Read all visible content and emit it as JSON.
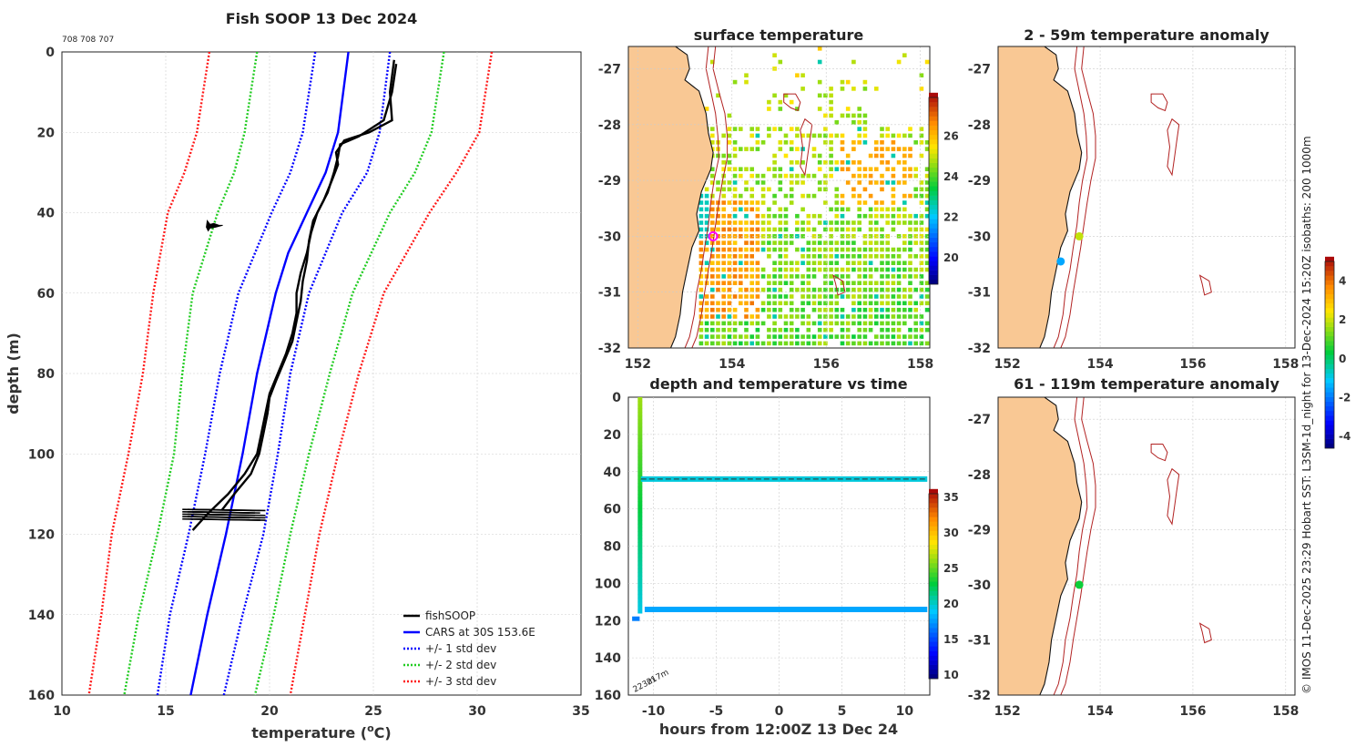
{
  "colors": {
    "land": "#f9c894",
    "isobath": "#b22222",
    "cars": "#0000ff",
    "std1": "#0000ff",
    "std2": "#22cc22",
    "std3": "#ff1a1a",
    "fish": "#000000"
  },
  "top_code": "708 708 707",
  "vertical_caption": "© IMOS 11-Dec-2025 23:29 Hobart SST: L3SM-1d_night for 13-Dec-2024 15:20Z isobaths: 200  1000m",
  "chart_data": [
    {
      "id": "profile",
      "type": "line",
      "title": "Fish SOOP 13 Dec 2024",
      "xlabel": "temperature (",
      "xlabel_sup": "o",
      "xlabel_end": "C)",
      "ylabel": "depth (m)",
      "xlim": [
        10,
        35
      ],
      "ylim": [
        0,
        160
      ],
      "xticks": [
        10,
        15,
        20,
        25,
        30,
        35
      ],
      "yticks": [
        0,
        20,
        40,
        60,
        80,
        100,
        120,
        140,
        160
      ],
      "legend": [
        {
          "label": "fishSOOP",
          "style": "solid",
          "color": "#000000"
        },
        {
          "label": "CARS at 30S 153.6E",
          "style": "solid",
          "color": "#0000ff"
        },
        {
          "label": "+/- 1 std dev",
          "style": "dotted",
          "color": "#0000ff"
        },
        {
          "label": "+/- 2 std dev",
          "style": "dotted",
          "color": "#22cc22"
        },
        {
          "label": "+/- 3 std dev",
          "style": "dotted",
          "color": "#ff1a1a"
        }
      ],
      "cars_mean": {
        "depth": [
          0,
          20,
          30,
          40,
          50,
          60,
          80,
          100,
          120,
          140,
          160
        ],
        "temp": [
          23.8,
          23.3,
          22.7,
          21.8,
          20.9,
          20.3,
          19.4,
          18.7,
          17.9,
          17.0,
          16.2
        ]
      },
      "std_offsets": [
        1.1,
        2.3,
        3.5
      ],
      "std_lines": [
        {
          "color": "#0000ff",
          "left": {
            "depth": [
              0,
              20,
              30,
              40,
              60,
              80,
              100,
              120,
              140,
              160
            ],
            "temp": [
              22.2,
              21.6,
              21.0,
              20.1,
              18.5,
              17.6,
              16.9,
              16.1,
              15.2,
              14.6
            ]
          },
          "right": {
            "depth": [
              0,
              20,
              30,
              40,
              60,
              80,
              100,
              120,
              140,
              160
            ],
            "temp": [
              25.8,
              25.3,
              24.7,
              23.5,
              21.9,
              21.0,
              20.4,
              19.7,
              18.7,
              17.8
            ]
          }
        },
        {
          "color": "#22cc22",
          "left": {
            "depth": [
              0,
              20,
              30,
              40,
              60,
              80,
              100,
              120,
              140,
              160
            ],
            "temp": [
              19.4,
              18.8,
              18.3,
              17.5,
              16.3,
              15.8,
              15.4,
              14.6,
              13.7,
              13.0
            ]
          },
          "right": {
            "depth": [
              0,
              20,
              30,
              40,
              60,
              80,
              100,
              120,
              140,
              160
            ],
            "temp": [
              28.4,
              27.8,
              27.0,
              25.8,
              24.0,
              22.9,
              21.9,
              21.0,
              20.2,
              19.3
            ]
          }
        },
        {
          "color": "#ff1a1a",
          "left": {
            "depth": [
              0,
              20,
              30,
              40,
              60,
              80,
              100,
              120,
              140,
              160
            ],
            "temp": [
              17.1,
              16.5,
              15.9,
              15.1,
              14.4,
              13.9,
              13.2,
              12.4,
              11.9,
              11.3
            ]
          },
          "right": {
            "depth": [
              0,
              20,
              30,
              40,
              60,
              80,
              100,
              120,
              140,
              160
            ],
            "temp": [
              30.7,
              30.1,
              29.0,
              27.7,
              25.5,
              24.3,
              23.3,
              22.4,
              21.7,
              21.0
            ]
          }
        }
      ],
      "fish_profiles": [
        {
          "depth": [
            2,
            10,
            17,
            20,
            22,
            25,
            28,
            32,
            37,
            42,
            47,
            52,
            57,
            62,
            67,
            72,
            77,
            82,
            86,
            90,
            95,
            100,
            105,
            110,
            114
          ],
          "temp": [
            26.0,
            25.8,
            25.9,
            24.8,
            23.6,
            23.2,
            23.3,
            23.0,
            22.6,
            22.1,
            21.9,
            21.8,
            21.6,
            21.5,
            21.3,
            21.1,
            20.7,
            20.3,
            20.0,
            19.9,
            19.7,
            19.5,
            19.1,
            18.3,
            17.7
          ]
        },
        {
          "depth": [
            3,
            10,
            17,
            21,
            23,
            26,
            30,
            35,
            40,
            45,
            50,
            55,
            60,
            65,
            70,
            75,
            80,
            85,
            90,
            95,
            100,
            105,
            110,
            115,
            119
          ],
          "temp": [
            26.1,
            25.9,
            25.5,
            24.3,
            23.4,
            23.3,
            23.1,
            22.8,
            22.3,
            22.0,
            21.8,
            21.5,
            21.3,
            21.3,
            21.1,
            20.8,
            20.4,
            20.0,
            19.8,
            19.6,
            19.4,
            18.8,
            18.0,
            17.0,
            16.3
          ]
        }
      ],
      "fish_cluster": {
        "depth": 115,
        "tmin": 15.8,
        "tmax": 19.8
      },
      "fish_blob": {
        "depth": 43.5,
        "temp": 17.5
      }
    },
    {
      "id": "sst",
      "type": "heatmap",
      "title": "surface temperature",
      "xlim": [
        151.8,
        158.2
      ],
      "ylim": [
        -32,
        -26.6
      ],
      "xticks": [
        152,
        154,
        156,
        158
      ],
      "yticks": [
        -27,
        -28,
        -29,
        -30,
        -31,
        -32
      ],
      "colorbar": {
        "ticks": [
          20,
          22,
          24,
          26
        ],
        "min": 18.7,
        "max": 27.9
      },
      "marker": {
        "lon": 153.6,
        "lat": -30.0
      }
    },
    {
      "id": "time_series",
      "type": "scatter",
      "title": "depth and temperature vs time",
      "xlabel": "hours from 12:00Z 13 Dec 24",
      "xlim": [
        -12,
        12
      ],
      "ylim": [
        0,
        160
      ],
      "xticks": [
        -10,
        -5,
        0,
        5,
        10
      ],
      "yticks": [
        0,
        20,
        40,
        60,
        80,
        100,
        120,
        140,
        160
      ],
      "colorbar": {
        "ticks": [
          10,
          15,
          20,
          25,
          30,
          35
        ],
        "min": 9.5,
        "max": 35.5
      },
      "depth_labels": [
        "223m",
        "217m"
      ],
      "upper_track": {
        "depth": 44,
        "temp": 19.3,
        "hour_start": -11.0,
        "hour_end": 11.8
      },
      "lower_track": {
        "depth": 114,
        "temp": 17.6,
        "hour_start": -10.7,
        "hour_end": 11.8
      }
    },
    {
      "id": "anom_shallow",
      "type": "scatter",
      "title": "2 - 59m temperature anomaly",
      "xlim": [
        151.8,
        158.2
      ],
      "ylim": [
        -32,
        -26.6
      ],
      "xticks": [
        152,
        154,
        156,
        158
      ],
      "yticks": [
        -27,
        -28,
        -29,
        -30,
        -31,
        -32
      ],
      "points": [
        {
          "lon": 153.55,
          "lat": -30.0,
          "anom": 1.8
        },
        {
          "lon": 153.15,
          "lat": -30.45,
          "anom": -1.6
        }
      ]
    },
    {
      "id": "anom_deep",
      "type": "scatter",
      "title": "61 - 119m temperature anomaly",
      "xlim": [
        151.8,
        158.2
      ],
      "ylim": [
        -32,
        -26.6
      ],
      "xticks": [
        152,
        154,
        156,
        158
      ],
      "yticks": [
        -27,
        -28,
        -29,
        -30,
        -31,
        -32
      ],
      "points": [
        {
          "lon": 153.55,
          "lat": -30.0,
          "anom": 0.3
        }
      ]
    },
    {
      "id": "anom_colorbar",
      "type": "heatmap",
      "colorbar": {
        "ticks": [
          4,
          2,
          0,
          -2,
          -4
        ],
        "min": -4.6,
        "max": 5.0
      }
    }
  ]
}
